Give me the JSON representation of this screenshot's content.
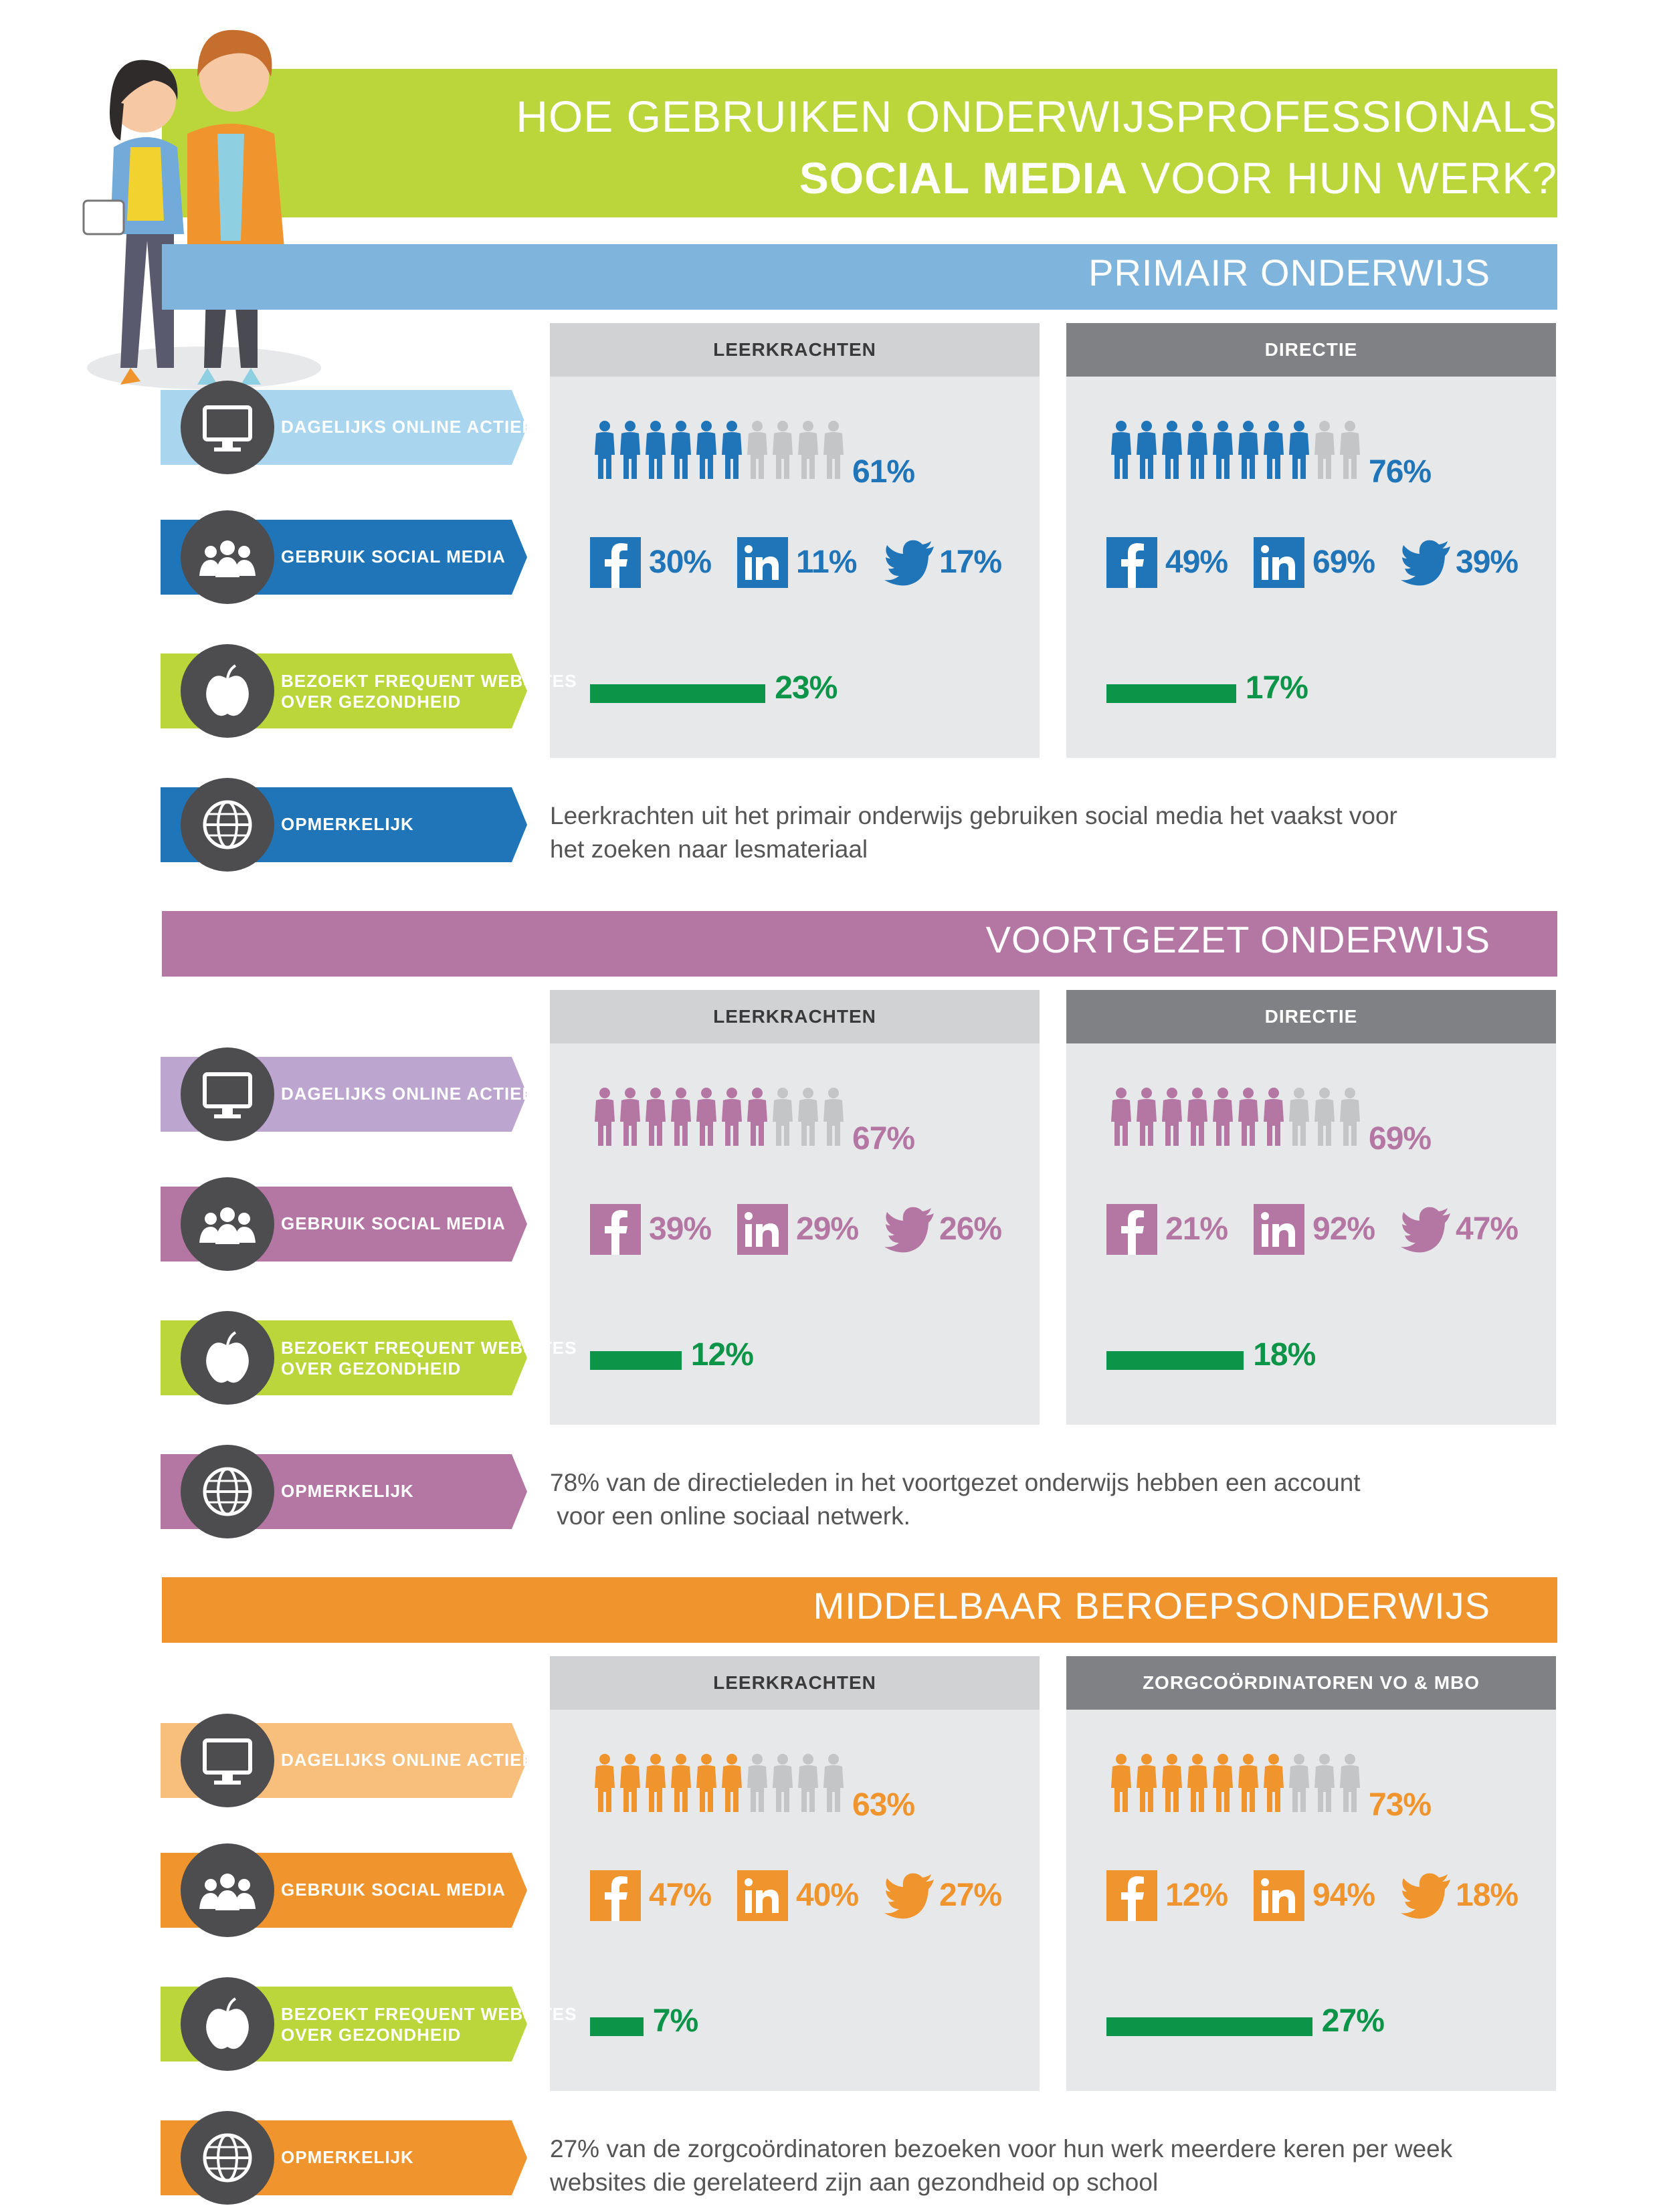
{
  "title": {
    "line1": "HOE GEBRUIKEN ONDERWIJSPROFESSIONALS",
    "line2_bold": "SOCIAL MEDIA",
    "line2_rest": " VOOR HUN WERK?"
  },
  "labels": {
    "online": "DAGELIJKS ONLINE ACTIEF",
    "social": "GEBRUIK SOCIAL MEDIA",
    "health_1": "BEZOEKT FREQUENT WEBSITES",
    "health_2": "OVER GEZONDHEID",
    "remark": "OPMERKELIJK"
  },
  "sections": [
    {
      "title": "PRIMAIR ONDERWIJS",
      "color": "#7fb4dc",
      "accent": "#1f75b7",
      "light": "#a9d6ee",
      "panels": [
        {
          "header": "LEERKRACHTEN",
          "online": "61%",
          "online_value": 61,
          "facebook": "30%",
          "linkedin": "11%",
          "twitter": "17%",
          "health": "23%",
          "health_value": 23
        },
        {
          "header": "DIRECTIE",
          "online": "76%",
          "online_value": 76,
          "facebook": "49%",
          "linkedin": "69%",
          "twitter": "39%",
          "health": "17%",
          "health_value": 17
        }
      ],
      "remark_1": "Leerkrachten uit het primair onderwijs gebruiken social media het vaakst voor",
      "remark_2": "het zoeken naar lesmateriaal"
    },
    {
      "title": "VOORTGEZET ONDERWIJS",
      "color": "#b477a3",
      "accent": "#b477a3",
      "light": "#bca5cf",
      "panels": [
        {
          "header": "LEERKRACHTEN",
          "online": "67%",
          "online_value": 67,
          "facebook": "39%",
          "linkedin": "29%",
          "twitter": "26%",
          "health": "12%",
          "health_value": 12
        },
        {
          "header": "DIRECTIE",
          "online": "69%",
          "online_value": 69,
          "facebook": "21%",
          "linkedin": "92%",
          "twitter": "47%",
          "health": "18%",
          "health_value": 18
        }
      ],
      "remark_1": "78% van de directieleden in het voortgezet onderwijs hebben een account",
      "remark_2": " voor een online sociaal netwerk."
    },
    {
      "title": "MIDDELBAAR BEROEPSONDERWIJS",
      "color": "#f0942d",
      "accent": "#f0942d",
      "light": "#f7be7c",
      "panels": [
        {
          "header": "LEERKRACHTEN",
          "online": "63%",
          "online_value": 63,
          "facebook": "47%",
          "linkedin": "40%",
          "twitter": "27%",
          "health": "7%",
          "health_value": 7
        },
        {
          "header": "ZORGCOÖRDINATOREN VO & MBO",
          "online": "73%",
          "online_value": 73,
          "facebook": "12%",
          "linkedin": "94%",
          "twitter": "18%",
          "health": "27%",
          "health_value": 27
        }
      ],
      "remark_1": "27% van de zorgcoördinatoren bezoeken voor hun werk meerdere keren per week",
      "remark_2": "websites die gerelateerd zijn aan gezondheid op school"
    }
  ],
  "colors": {
    "title_band": "#bbd63a",
    "health_label": "#bbd63a",
    "health_bar": "#0c9448",
    "panel_bg": "#e7e8ea",
    "icon_circle": "#4d4d4f",
    "inactive_person": "#c4c5c7"
  },
  "icons": [
    "monitor-icon",
    "people-icon",
    "apple-icon",
    "globe-icon",
    "facebook-icon",
    "linkedin-icon",
    "twitter-icon",
    "person-icon"
  ]
}
